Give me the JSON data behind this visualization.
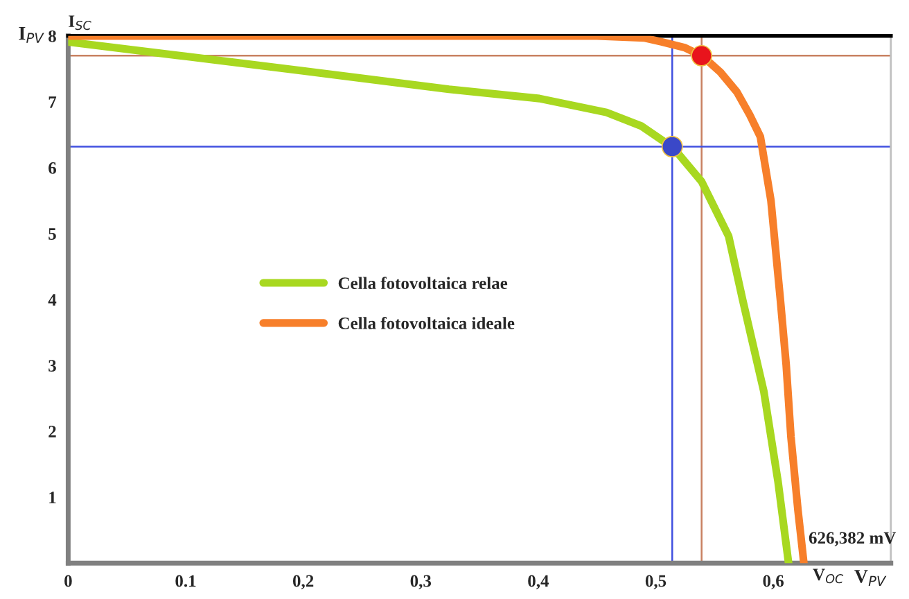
{
  "chart_data": {
    "type": "line",
    "xlabel": "V$_{PV}$",
    "ylabel": "I$_{PV}$",
    "xlim": [
      0,
      0.7
    ],
    "ylim": [
      0,
      8
    ],
    "xticks": [
      0,
      {
        "value": 0.1,
        "label": "0.1"
      },
      {
        "value": 0.2,
        "label": "0,2"
      },
      {
        "value": 0.3,
        "label": "0,3"
      },
      {
        "value": 0.4,
        "label": "0,4"
      },
      {
        "value": 0.5,
        "label": "0,5"
      },
      {
        "value": 0.6,
        "label": "0,6"
      }
    ],
    "yticks": [
      1,
      2,
      3,
      4,
      5,
      6,
      7,
      8
    ],
    "grid": false,
    "legend": "center",
    "marker": "none",
    "line_style": "solid",
    "series": [
      {
        "name": "Cella fotovoltaica relae",
        "color": "#a8d820",
        "x": [
          0,
          0.1,
          0.2,
          0.324,
          0.401,
          0.458,
          0.488,
          0.515,
          0.539,
          0.562,
          0.574,
          0.592,
          0.604,
          0.613
        ],
        "values": [
          7.91,
          7.69,
          7.47,
          7.19,
          7.05,
          6.84,
          6.63,
          6.3,
          5.79,
          4.96,
          3.99,
          2.6,
          1.24,
          0
        ]
      },
      {
        "name": "Cella fotovoltaica ideale",
        "color": "#f77f2a",
        "x": [
          0,
          0.45,
          0.49,
          0.505,
          0.525,
          0.54,
          0.555,
          0.569,
          0.58,
          0.589,
          0.598,
          0.606,
          0.611,
          0.615,
          0.621,
          0.626
        ],
        "values": [
          8,
          8,
          7.97,
          7.91,
          7.82,
          7.69,
          7.45,
          7.15,
          6.8,
          6.47,
          5.5,
          4.0,
          3.0,
          1.92,
          0.8,
          0
        ]
      },
      {
        "type": "scatter",
        "marker": "circle",
        "color": "#e8141c",
        "x": [
          0.539
        ],
        "values": [
          7.7
        ]
      },
      {
        "type": "scatter",
        "marker": "circle",
        "color": "#3a48c8",
        "x": [
          0.514
        ],
        "values": [
          6.32
        ]
      }
    ],
    "ref_lines": [
      {
        "axis": "x",
        "value": 0.539,
        "color": "#c88060",
        "line_style": "solid"
      },
      {
        "axis": "y",
        "value": 7.7,
        "color": "#c88060",
        "line_style": "solid"
      },
      {
        "axis": "x",
        "value": 0.514,
        "color": "#4050e0",
        "line_style": "solid"
      },
      {
        "axis": "y",
        "value": 6.32,
        "color": "#4050e0",
        "line_style": "solid"
      }
    ],
    "annotations": [
      "I$_{SC}$",
      "V$_{OC}$",
      "626,382 mV"
    ]
  }
}
